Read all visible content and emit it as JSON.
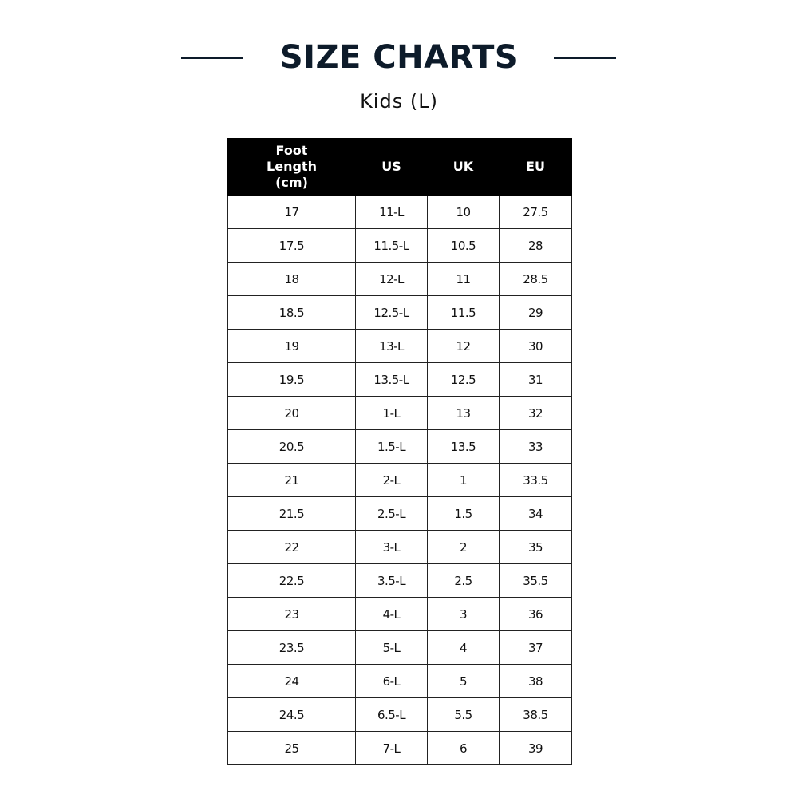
{
  "title": "SIZE CHARTS",
  "subtitle": "Kids (L)",
  "colors": {
    "title": "#0d1b2a",
    "header_bg": "#000000"
  },
  "table": {
    "headers": [
      "Foot Length (cm)",
      "US",
      "UK",
      "EU"
    ],
    "rows": [
      [
        "17",
        "11-L",
        "10",
        "27.5"
      ],
      [
        "17.5",
        "11.5-L",
        "10.5",
        "28"
      ],
      [
        "18",
        "12-L",
        "11",
        "28.5"
      ],
      [
        "18.5",
        "12.5-L",
        "11.5",
        "29"
      ],
      [
        "19",
        "13-L",
        "12",
        "30"
      ],
      [
        "19.5",
        "13.5-L",
        "12.5",
        "31"
      ],
      [
        "20",
        "1-L",
        "13",
        "32"
      ],
      [
        "20.5",
        "1.5-L",
        "13.5",
        "33"
      ],
      [
        "21",
        "2-L",
        "1",
        "33.5"
      ],
      [
        "21.5",
        "2.5-L",
        "1.5",
        "34"
      ],
      [
        "22",
        "3-L",
        "2",
        "35"
      ],
      [
        "22.5",
        "3.5-L",
        "2.5",
        "35.5"
      ],
      [
        "23",
        "4-L",
        "3",
        "36"
      ],
      [
        "23.5",
        "5-L",
        "4",
        "37"
      ],
      [
        "24",
        "6-L",
        "5",
        "38"
      ],
      [
        "24.5",
        "6.5-L",
        "5.5",
        "38.5"
      ],
      [
        "25",
        "7-L",
        "6",
        "39"
      ]
    ]
  }
}
